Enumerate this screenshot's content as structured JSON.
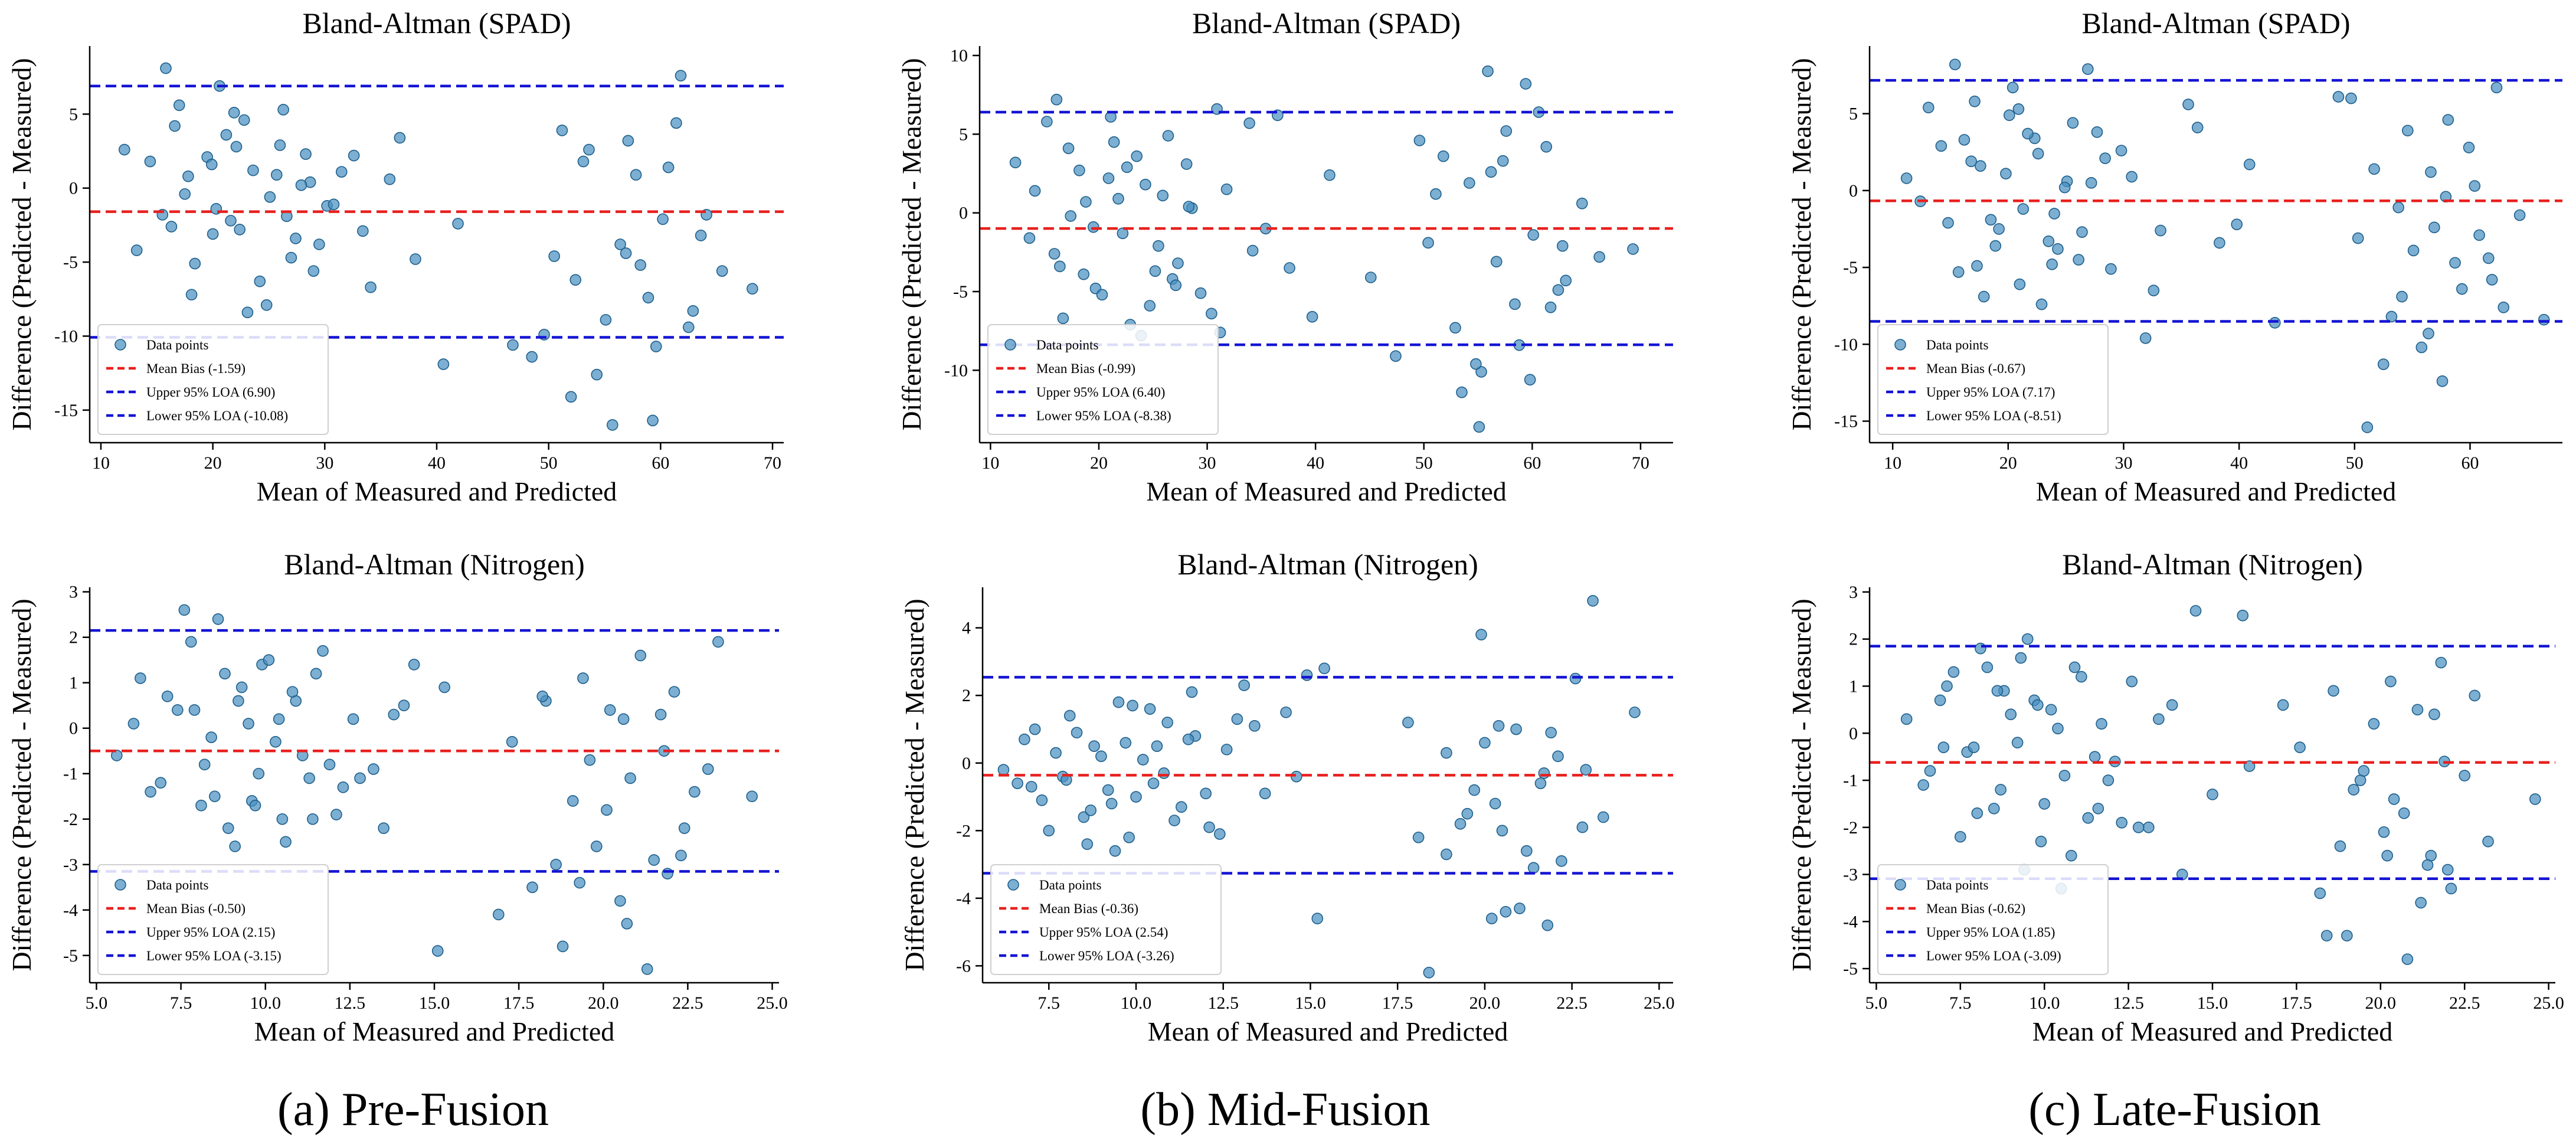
{
  "figure": {
    "captions": [
      "(a) Pre-Fusion",
      "(b) Mid-Fusion",
      "(c) Late-Fusion"
    ]
  },
  "colors": {
    "points": "#4a90c0",
    "points_edge": "#1f5f8b",
    "bias": "#e8201e",
    "loa": "#1414d4",
    "axes": "#000000"
  },
  "chart_data": [
    {
      "id": "pre-spad",
      "type": "scatter",
      "title": "Bland-Altman (SPAD)",
      "xlabel": "Mean of Measured and Predicted",
      "ylabel": "Difference (Predicted - Measured)",
      "xlim": [
        9,
        71
      ],
      "ylim": [
        -17.2,
        9.6
      ],
      "xticks": [
        10,
        20,
        30,
        40,
        50,
        60,
        70
      ],
      "yticks": [
        -15,
        -10,
        -5,
        0,
        5
      ],
      "bias": -1.59,
      "upper_loa": 6.9,
      "lower_loa": -10.08,
      "legend": [
        "Data points",
        "Mean Bias (-1.59)",
        "Upper 95% LOA (6.90)",
        "Lower 95% LOA (-10.08)"
      ],
      "points_x": [
        12.1,
        14.4,
        16.6,
        17.8,
        19.5,
        20.3,
        21.2,
        22.4,
        23.6,
        25.1,
        26.0,
        27.4,
        28.7,
        13.2,
        15.5,
        17.0,
        18.4,
        19.9,
        21.6,
        22.8,
        24.2,
        25.7,
        27.0,
        28.3,
        30.2,
        15.8,
        18.1,
        20.6,
        23.1,
        26.3,
        29.0,
        31.5,
        33.4,
        35.8,
        38.1,
        40.6,
        46.8,
        48.5,
        51.2,
        52.4,
        53.6,
        55.1,
        56.4,
        57.8,
        58.9,
        60.2,
        61.4,
        62.5,
        64.1,
        65.5,
        68.2,
        52.0,
        55.7,
        58.2,
        60.7,
        62.9,
        50.5,
        54.3,
        57.1,
        59.6,
        17.5,
        20.0,
        22.1,
        24.8,
        27.9,
        30.8,
        34.1,
        36.7,
        41.9,
        49.6,
        53.1,
        56.9,
        61.8,
        16.3,
        21.9,
        26.6,
        29.5,
        32.6,
        59.3,
        63.6
      ],
      "points_y": [
        2.6,
        1.8,
        4.2,
        0.8,
        2.1,
        -1.4,
        3.6,
        -2.8,
        1.2,
        -0.6,
        2.9,
        -3.4,
        0.4,
        -4.2,
        -1.8,
        5.6,
        -5.1,
        1.6,
        -2.2,
        4.6,
        -6.3,
        0.9,
        -4.7,
        2.3,
        -1.2,
        8.1,
        -7.2,
        6.9,
        -8.4,
        5.3,
        -5.6,
        1.1,
        -2.9,
        0.6,
        -4.8,
        -11.9,
        -10.6,
        -11.4,
        3.9,
        -6.2,
        2.6,
        -8.9,
        -3.8,
        0.9,
        -7.4,
        -2.1,
        4.4,
        -9.4,
        -1.8,
        -5.6,
        -6.8,
        -14.1,
        -16.0,
        -5.2,
        1.4,
        -8.3,
        -4.6,
        -12.6,
        3.2,
        -10.7,
        -0.4,
        -3.1,
        2.8,
        -7.9,
        0.2,
        -1.1,
        -6.7,
        3.4,
        -2.4,
        -9.9,
        1.8,
        -4.4,
        7.6,
        -2.6,
        5.1,
        -1.9,
        -3.8,
        2.2,
        -15.7,
        -3.2
      ]
    },
    {
      "id": "mid-spad",
      "type": "scatter",
      "title": "Bland-Altman (SPAD)",
      "xlabel": "Mean of Measured and Predicted",
      "ylabel": "Difference (Predicted - Measured)",
      "xlim": [
        9,
        73
      ],
      "ylim": [
        -14.6,
        10.6
      ],
      "xticks": [
        10,
        20,
        30,
        40,
        50,
        60,
        70
      ],
      "yticks": [
        -10,
        -5,
        0,
        5,
        10
      ],
      "bias": -0.99,
      "upper_loa": 6.4,
      "lower_loa": -8.38,
      "legend": [
        "Data points",
        "Mean Bias (-0.99)",
        "Upper 95% LOA (6.40)",
        "Lower 95% LOA (-8.38)"
      ],
      "points_x": [
        12.3,
        14.1,
        15.9,
        17.2,
        18.8,
        19.7,
        20.9,
        22.2,
        23.5,
        24.7,
        25.9,
        27.3,
        28.6,
        13.6,
        15.2,
        16.7,
        18.2,
        19.5,
        21.4,
        22.9,
        24.3,
        25.5,
        26.8,
        28.1,
        30.4,
        16.1,
        18.6,
        21.1,
        23.9,
        26.4,
        29.4,
        31.8,
        34.2,
        36.5,
        39.7,
        41.3,
        47.4,
        49.6,
        51.8,
        52.9,
        54.2,
        55.3,
        56.7,
        57.6,
        58.8,
        60.1,
        61.3,
        62.4,
        64.6,
        66.2,
        69.3,
        53.5,
        55.9,
        58.4,
        60.6,
        63.1,
        50.4,
        54.8,
        57.3,
        59.8,
        17.4,
        20.3,
        22.6,
        25.2,
        28.3,
        31.2,
        33.9,
        37.6,
        45.1,
        51.1,
        56.2,
        61.7,
        16.4,
        21.8,
        27.1,
        30.9,
        35.4,
        55.1,
        59.4,
        62.8
      ],
      "points_y": [
        3.2,
        1.4,
        -2.6,
        4.1,
        0.7,
        -4.8,
        2.2,
        -1.3,
        3.6,
        -5.9,
        1.1,
        -3.2,
        0.3,
        -1.6,
        5.8,
        -6.7,
        2.7,
        -0.9,
        4.5,
        -7.1,
        1.8,
        -2.1,
        -4.2,
        3.1,
        -6.4,
        7.2,
        -3.9,
        6.1,
        -7.8,
        4.9,
        -5.1,
        1.5,
        -2.4,
        6.2,
        -6.6,
        2.4,
        -9.1,
        4.6,
        3.6,
        -7.3,
        1.9,
        -10.1,
        -3.1,
        5.2,
        -8.4,
        -1.4,
        4.2,
        -4.9,
        0.6,
        -2.8,
        -2.3,
        -11.4,
        9.0,
        -5.8,
        6.4,
        -4.3,
        -1.9,
        -9.6,
        3.3,
        -10.6,
        -0.2,
        -5.2,
        2.9,
        -3.7,
        0.4,
        -7.6,
        5.7,
        -3.5,
        -4.1,
        1.2,
        2.6,
        -6.0,
        -3.4,
        0.9,
        -4.6,
        6.6,
        -1.0,
        -13.6,
        8.2,
        -2.1
      ]
    },
    {
      "id": "late-spad",
      "type": "scatter",
      "title": "Bland-Altman (SPAD)",
      "xlabel": "Mean of Measured and Predicted",
      "ylabel": "Difference (Predicted - Measured)",
      "xlim": [
        8,
        68
      ],
      "ylim": [
        -16.4,
        9.4
      ],
      "xticks": [
        10,
        20,
        30,
        40,
        50,
        60
      ],
      "yticks": [
        -15,
        -10,
        -5,
        0,
        5
      ],
      "bias": -0.67,
      "upper_loa": 7.17,
      "lower_loa": -8.51,
      "legend": [
        "Data points",
        "Mean Bias (-0.67)",
        "Upper 95% LOA (7.17)",
        "Lower 95% LOA (-8.51)"
      ],
      "points_x": [
        11.2,
        13.1,
        14.8,
        16.2,
        17.6,
        18.9,
        20.1,
        21.3,
        22.6,
        23.8,
        25.1,
        26.4,
        27.7,
        12.4,
        14.2,
        15.7,
        17.1,
        18.5,
        19.8,
        21.0,
        22.3,
        23.5,
        24.9,
        26.1,
        28.4,
        15.4,
        17.9,
        20.4,
        22.9,
        25.6,
        28.9,
        30.7,
        33.2,
        35.6,
        38.3,
        40.9,
        43.1,
        48.6,
        50.3,
        51.7,
        53.2,
        54.6,
        55.8,
        56.9,
        58.1,
        59.3,
        60.4,
        61.6,
        62.9,
        64.3,
        66.4,
        52.5,
        55.1,
        57.6,
        59.9,
        61.9,
        51.1,
        54.1,
        56.4,
        58.7,
        16.8,
        19.2,
        21.7,
        24.3,
        27.2,
        29.8,
        32.6,
        36.4,
        39.8,
        49.7,
        53.8,
        57.9,
        62.3,
        17.3,
        20.9,
        24.0,
        26.9,
        31.9,
        56.6,
        60.8
      ],
      "points_y": [
        0.8,
        5.4,
        -2.1,
        3.3,
        1.6,
        -3.6,
        4.9,
        -1.2,
        2.4,
        -4.8,
        0.6,
        -2.7,
        3.8,
        -0.7,
        2.9,
        -5.3,
        5.8,
        -1.9,
        1.1,
        -6.1,
        3.4,
        -3.3,
        0.2,
        -4.5,
        2.1,
        8.2,
        -6.9,
        6.7,
        -7.4,
        4.4,
        -5.1,
        0.9,
        -2.6,
        5.6,
        -3.4,
        1.7,
        -8.6,
        6.1,
        -3.1,
        1.4,
        -8.2,
        3.9,
        -10.2,
        -2.4,
        4.6,
        -6.4,
        0.3,
        -4.4,
        -7.6,
        -1.6,
        -8.4,
        -11.3,
        -3.9,
        -12.4,
        2.8,
        -5.8,
        -15.4,
        -6.9,
        -9.3,
        -4.7,
        1.9,
        -2.5,
        3.7,
        -3.8,
        0.5,
        2.6,
        -6.5,
        4.1,
        -2.2,
        6.0,
        -1.1,
        -0.4,
        6.7,
        -4.9,
        5.3,
        -1.5,
        7.9,
        -9.6,
        1.2,
        -2.9
      ]
    },
    {
      "id": "pre-nitrogen",
      "type": "scatter",
      "title": "Bland-Altman (Nitrogen)",
      "xlabel": "Mean of Measured and Predicted",
      "ylabel": "Difference (Predicted - Measured)",
      "xlim": [
        4.8,
        25.2
      ],
      "ylim": [
        -5.6,
        3.1
      ],
      "xticks": [
        5.0,
        7.5,
        10.0,
        12.5,
        15.0,
        17.5,
        20.0,
        22.5,
        25.0
      ],
      "yticks": [
        -5,
        -4,
        -3,
        -2,
        -1,
        0,
        1,
        2,
        3
      ],
      "bias": -0.5,
      "upper_loa": 2.15,
      "lower_loa": -3.15,
      "legend": [
        "Data points",
        "Mean Bias (-0.50)",
        "Upper 95% LOA (2.15)",
        "Lower 95% LOA (-3.15)"
      ],
      "points_x": [
        5.6,
        6.3,
        6.9,
        7.4,
        7.8,
        8.2,
        8.6,
        8.9,
        9.3,
        9.6,
        9.9,
        10.3,
        10.6,
        10.9,
        11.3,
        11.7,
        12.1,
        12.6,
        13.2,
        13.8,
        6.6,
        7.1,
        7.6,
        8.1,
        8.4,
        8.8,
        9.1,
        9.5,
        9.8,
        10.1,
        10.5,
        10.8,
        11.1,
        11.5,
        12.3,
        13.5,
        14.4,
        15.1,
        15.3,
        17.3,
        17.9,
        18.3,
        18.8,
        19.1,
        19.4,
        19.8,
        20.2,
        20.5,
        20.8,
        21.1,
        21.5,
        21.8,
        22.1,
        22.4,
        22.7,
        23.4,
        24.4,
        16.9,
        19.3,
        20.6,
        21.3,
        22.3,
        18.2,
        20.1,
        21.7,
        7.9,
        9.7,
        11.9,
        14.1,
        8.5,
        10.4,
        12.8,
        19.6,
        21.9,
        23.1,
        6.1,
        9.2,
        11.4,
        20.7,
        18.6
      ],
      "points_y": [
        -0.6,
        1.1,
        -1.2,
        0.4,
        1.9,
        -0.8,
        2.4,
        -2.2,
        0.9,
        -1.6,
        1.4,
        -0.3,
        -2.5,
        0.6,
        -1.1,
        1.7,
        -1.9,
        0.2,
        -0.9,
        0.3,
        -1.4,
        0.7,
        2.6,
        -1.7,
        -0.2,
        1.2,
        -2.6,
        0.1,
        -1.0,
        1.5,
        -2.0,
        0.8,
        -0.6,
        1.2,
        -1.3,
        -2.2,
        1.4,
        -4.9,
        0.9,
        -0.3,
        -3.5,
        0.6,
        -4.8,
        -1.6,
        1.1,
        -2.6,
        0.4,
        -3.8,
        -1.1,
        1.6,
        -2.9,
        -0.5,
        0.8,
        -2.2,
        -1.4,
        1.9,
        -1.5,
        -4.1,
        -3.4,
        0.2,
        -5.3,
        -2.8,
        0.7,
        -1.8,
        0.3,
        0.4,
        -1.7,
        -0.8,
        0.5,
        -1.5,
        0.2,
        -1.1,
        -0.7,
        -3.2,
        -0.9,
        0.1,
        0.6,
        -2.0,
        -4.3,
        -3.0
      ]
    },
    {
      "id": "mid-nitrogen",
      "type": "scatter",
      "title": "Bland-Altman (Nitrogen)",
      "xlabel": "Mean of Measured and Predicted",
      "ylabel": "Difference (Predicted - Measured)",
      "xlim": [
        5.6,
        25.4
      ],
      "ylim": [
        -6.5,
        5.2
      ],
      "xticks": [
        7.5,
        10.0,
        12.5,
        15.0,
        17.5,
        20.0,
        22.5,
        25.0
      ],
      "yticks": [
        -6,
        -4,
        -2,
        0,
        2,
        4
      ],
      "bias": -0.36,
      "upper_loa": 2.54,
      "lower_loa": -3.26,
      "legend": [
        "Data points",
        "Mean Bias (-0.36)",
        "Upper 95% LOA (2.54)",
        "Lower 95% LOA (-3.26)"
      ],
      "points_x": [
        6.2,
        6.8,
        7.3,
        7.7,
        8.1,
        8.5,
        8.8,
        9.2,
        9.5,
        9.8,
        10.2,
        10.5,
        10.9,
        11.3,
        11.7,
        12.1,
        12.6,
        13.1,
        13.7,
        14.3,
        6.6,
        7.1,
        7.5,
        7.9,
        8.3,
        8.7,
        9.0,
        9.4,
        9.7,
        10.0,
        10.4,
        10.8,
        11.1,
        11.5,
        12.4,
        13.4,
        14.9,
        15.2,
        15.4,
        17.8,
        18.4,
        18.9,
        19.3,
        19.7,
        20.0,
        20.3,
        20.6,
        20.9,
        21.2,
        21.6,
        21.9,
        22.2,
        22.6,
        22.9,
        23.4,
        24.3,
        18.1,
        19.9,
        21.0,
        21.4,
        22.1,
        18.9,
        20.4,
        21.8,
        8.0,
        9.9,
        12.0,
        14.6,
        8.6,
        10.6,
        12.9,
        19.5,
        21.7,
        23.1,
        7.0,
        9.3,
        11.6,
        20.2,
        22.8,
        20.5
      ],
      "points_y": [
        -0.2,
        0.7,
        -1.1,
        0.3,
        1.4,
        -1.6,
        0.5,
        -0.8,
        1.8,
        -2.2,
        0.1,
        -0.6,
        1.2,
        -1.3,
        0.8,
        -1.9,
        0.4,
        2.3,
        -0.9,
        1.5,
        -0.6,
        1.0,
        -2.0,
        -0.4,
        0.9,
        -1.4,
        0.2,
        -2.6,
        0.6,
        -1.0,
        1.6,
        -0.3,
        -1.7,
        0.7,
        -2.1,
        1.1,
        2.6,
        -4.6,
        2.8,
        1.2,
        -6.2,
        0.3,
        -1.8,
        -0.8,
        0.6,
        -1.2,
        -4.4,
        1.0,
        -2.6,
        -0.6,
        0.9,
        -2.9,
        2.5,
        -0.2,
        -1.6,
        1.5,
        -2.2,
        3.8,
        -4.3,
        -3.1,
        0.2,
        -2.7,
        1.1,
        -4.8,
        -0.5,
        1.7,
        -0.9,
        -0.4,
        -2.4,
        0.5,
        1.3,
        -1.5,
        -0.3,
        4.8,
        -0.7,
        -1.2,
        2.1,
        -4.6,
        -1.9,
        -2.0
      ]
    },
    {
      "id": "late-nitrogen",
      "type": "scatter",
      "title": "Bland-Altman (Nitrogen)",
      "xlabel": "Mean of Measured and Predicted",
      "ylabel": "Difference (Predicted - Measured)",
      "xlim": [
        4.8,
        25.2
      ],
      "ylim": [
        -5.3,
        3.1
      ],
      "xticks": [
        5.0,
        7.5,
        10.0,
        12.5,
        15.0,
        17.5,
        20.0,
        22.5,
        25.0
      ],
      "yticks": [
        -5,
        -4,
        -3,
        -2,
        -1,
        0,
        1,
        2,
        3
      ],
      "bias": -0.62,
      "upper_loa": 1.85,
      "lower_loa": -3.09,
      "legend": [
        "Data points",
        "Mean Bias (-0.62)",
        "Upper 95% LOA (1.85)",
        "Lower 95% LOA (-3.09)"
      ],
      "points_x": [
        5.9,
        6.4,
        6.9,
        7.3,
        7.7,
        8.1,
        8.5,
        8.8,
        9.2,
        9.5,
        9.9,
        10.2,
        10.6,
        10.9,
        11.3,
        11.7,
        12.1,
        12.6,
        13.1,
        13.8,
        6.6,
        7.1,
        7.5,
        7.9,
        8.3,
        8.7,
        9.0,
        9.4,
        9.7,
        10.0,
        10.4,
        10.8,
        11.1,
        11.5,
        12.3,
        13.4,
        14.5,
        15.0,
        15.9,
        17.1,
        17.6,
        18.2,
        18.6,
        19.0,
        19.4,
        19.8,
        20.1,
        20.4,
        20.8,
        21.1,
        21.5,
        21.8,
        22.1,
        22.5,
        23.2,
        24.6,
        18.8,
        20.3,
        21.2,
        22.0,
        19.5,
        20.7,
        21.6,
        8.0,
        9.8,
        11.9,
        14.1,
        8.6,
        10.5,
        12.8,
        19.2,
        21.4,
        22.8,
        7.0,
        9.3,
        11.6,
        20.2,
        18.4,
        16.1,
        21.9
      ],
      "points_y": [
        0.3,
        -1.1,
        0.7,
        1.3,
        -0.4,
        1.8,
        -1.6,
        0.9,
        -0.2,
        2.0,
        -2.3,
        0.5,
        -0.9,
        1.4,
        -1.8,
        0.2,
        -0.6,
        1.1,
        -2.0,
        0.6,
        -0.8,
        1.0,
        -2.2,
        -0.3,
        1.4,
        -1.2,
        0.4,
        -2.9,
        0.7,
        -1.5,
        0.1,
        -2.6,
        1.2,
        -0.5,
        -1.9,
        0.3,
        2.6,
        -1.3,
        2.5,
        0.6,
        -0.3,
        -3.4,
        0.9,
        -4.3,
        -1.0,
        0.2,
        -2.1,
        -1.4,
        -4.8,
        0.5,
        -2.6,
        1.5,
        -3.3,
        -0.9,
        -2.3,
        -1.4,
        -2.4,
        1.1,
        -3.6,
        -2.9,
        -0.8,
        -1.7,
        0.4,
        -1.7,
        0.6,
        -1.0,
        -3.0,
        0.9,
        -3.3,
        -2.0,
        -1.2,
        -2.8,
        0.8,
        -0.3,
        1.6,
        -1.6,
        -2.6,
        -4.3,
        -0.7,
        -0.6
      ]
    }
  ]
}
